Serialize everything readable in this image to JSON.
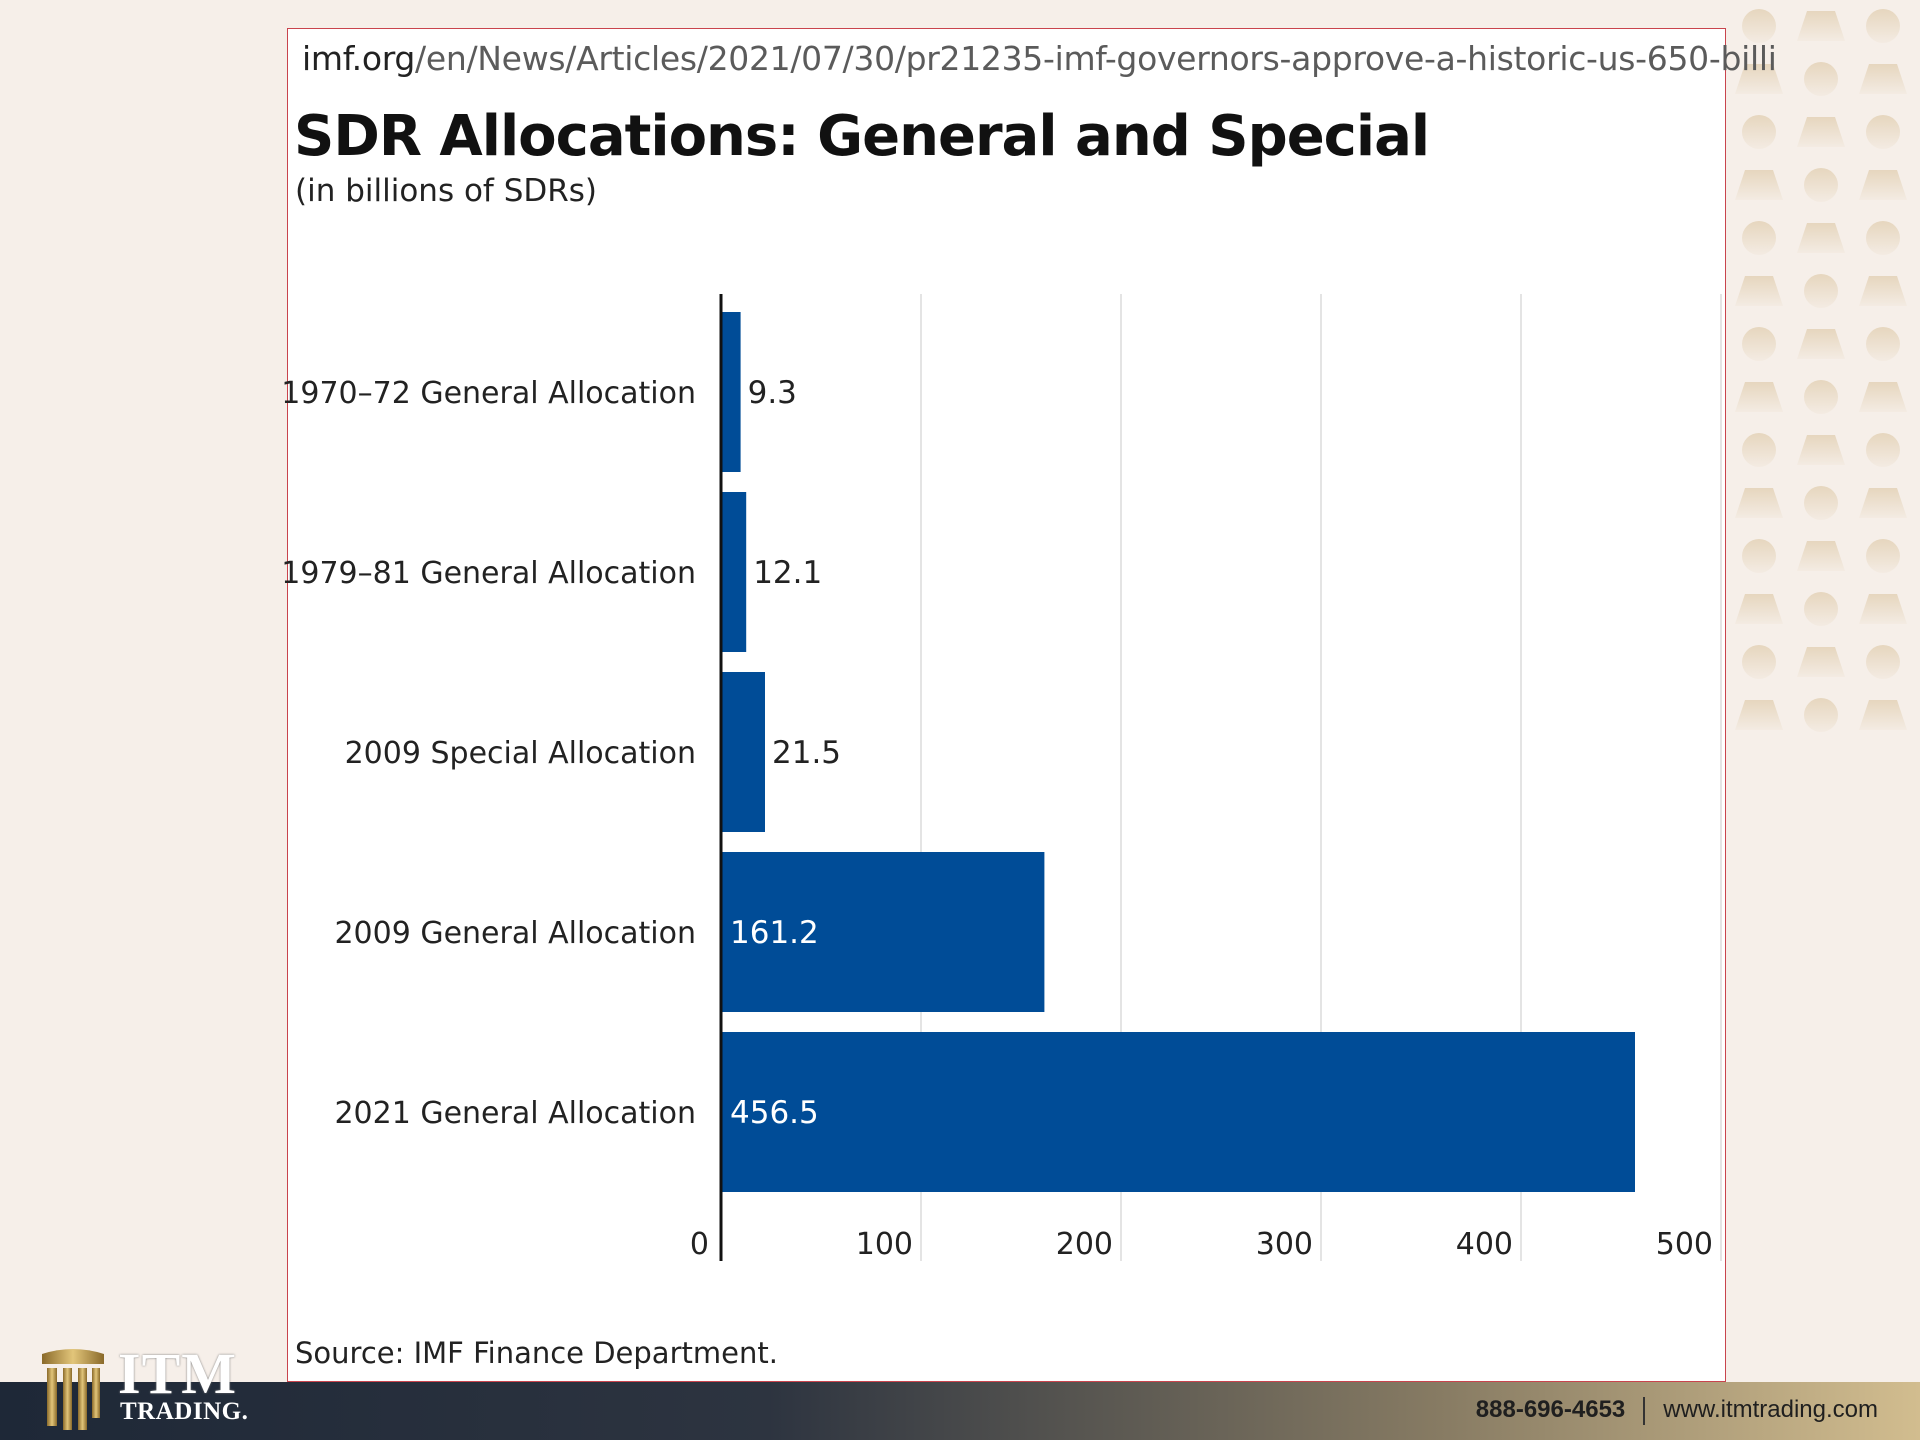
{
  "browser": {
    "url_host": "imf.org",
    "url_path": "/en/News/Articles/2021/07/30/pr21235-imf-governors-approve-a-historic-us-650-billi"
  },
  "chart_data": {
    "type": "bar",
    "orientation": "horizontal",
    "title": "SDR Allocations: General and Special",
    "subtitle": "(in billions of SDRs)",
    "categories": [
      "1970–72 General Allocation",
      "1979–81 General Allocation",
      "2009 Special Allocation",
      "2009 General Allocation",
      "2021 General Allocation"
    ],
    "values": [
      9.3,
      12.1,
      21.5,
      161.2,
      456.5
    ],
    "value_labels": [
      "9.3",
      "12.1",
      "21.5",
      "161.2",
      "456.5"
    ],
    "xlim": [
      0,
      500
    ],
    "xticks": [
      "0",
      "100",
      "200",
      "300",
      "400",
      "500"
    ],
    "grid": true,
    "bar_color": "#004c97",
    "source": "Source: IMF Finance Department."
  },
  "footer": {
    "phone": "888-696-4653",
    "website": "www.itmtrading.com"
  },
  "logo": {
    "line1": "ITM",
    "line2": "TRADING."
  },
  "colors": {
    "bar": "#004c97",
    "card_border": "#c9444d",
    "gold": "#c9a24f"
  }
}
